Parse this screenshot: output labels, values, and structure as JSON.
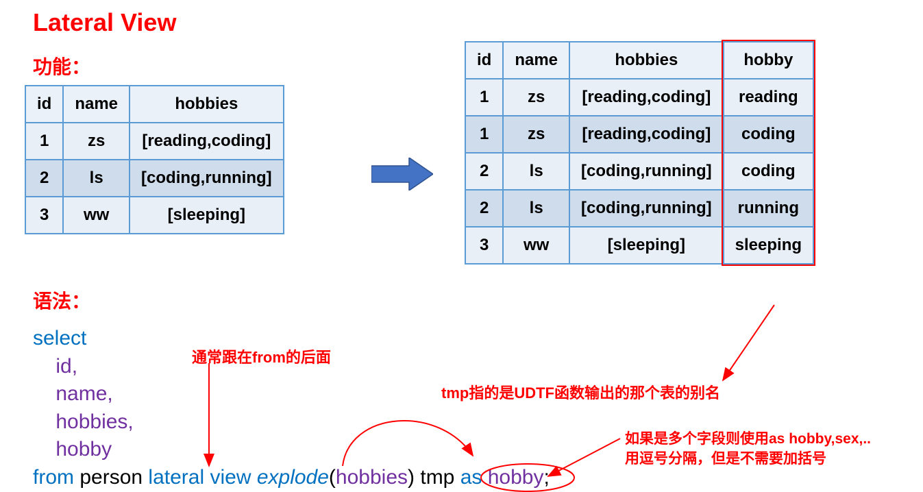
{
  "title": "Lateral View",
  "subtitles": {
    "func": "功能：",
    "syntax": "语法："
  },
  "left_table": {
    "columns": [
      "id",
      "name",
      "hobbies"
    ],
    "rows": [
      [
        "1",
        "zs",
        "[reading,coding]"
      ],
      [
        "2",
        "ls",
        "[coding,running]"
      ],
      [
        "3",
        "ww",
        "[sleeping]"
      ]
    ],
    "header_bg": "#eaf1f9",
    "row_odd_bg": "#cfdceb",
    "row_even_bg": "#e9eff7",
    "border_color": "#5b9bd5",
    "font_size": 24
  },
  "right_table": {
    "columns": [
      "id",
      "name",
      "hobbies",
      "hobby"
    ],
    "rows": [
      [
        "1",
        "zs",
        "[reading,coding]",
        "reading"
      ],
      [
        "1",
        "zs",
        "[reading,coding]",
        "coding"
      ],
      [
        "2",
        "ls",
        "[coding,running]",
        "coding"
      ],
      [
        "2",
        "ls",
        "[coding,running]",
        "running"
      ],
      [
        "3",
        "ww",
        "[sleeping]",
        "sleeping"
      ]
    ],
    "highlight_column_index": 3,
    "highlight_color": "#ff0000"
  },
  "arrow": {
    "fill": "#4472c4",
    "stroke": "#2f528f"
  },
  "code": {
    "select": "select",
    "fields": [
      "id,",
      "name,",
      "hobbies,",
      "hobby"
    ],
    "from": "from",
    "table": "person",
    "lateral": "lateral view",
    "func": "explode",
    "func_arg": "hobbies",
    "alias": "tmp",
    "as": "as",
    "col_alias": "hobby",
    "semi": ";",
    "colors": {
      "keyword": "#0070c0",
      "identifier": "#7030a0",
      "plain": "#000000"
    }
  },
  "notes": {
    "n1": "通常跟在from的后面",
    "n2": "tmp指的是UDTF函数输出的那个表的别名",
    "n3_l1": "如果是多个字段则使用as hobby,sex,..",
    "n3_l2": "用逗号分隔，但是不需要加括号"
  },
  "annotation_color": "#ff0000"
}
